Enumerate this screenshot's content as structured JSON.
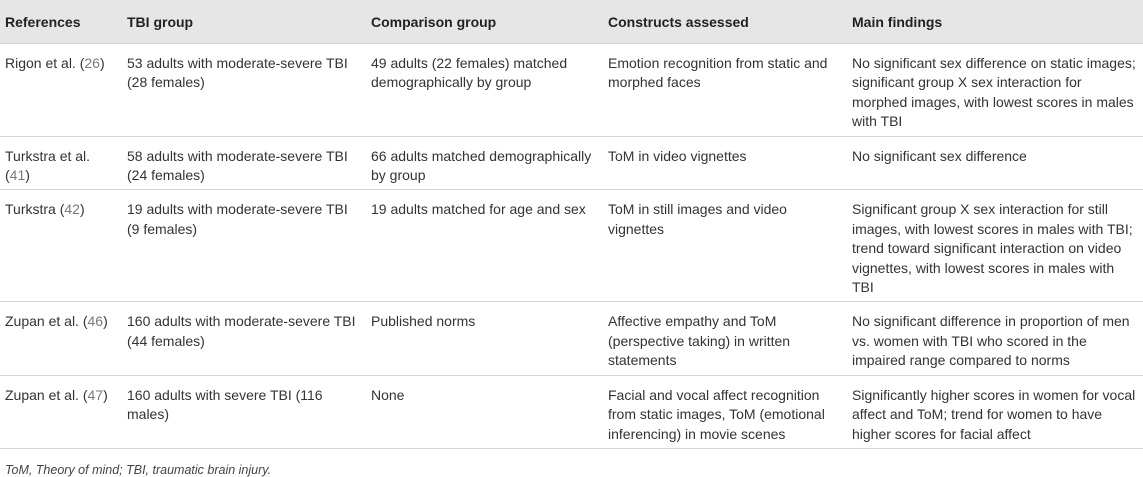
{
  "table": {
    "headers": [
      "References",
      "TBI group",
      "Comparison group",
      "Constructs assessed",
      "Main findings"
    ],
    "rows": [
      {
        "author": "Rigon et al.",
        "ref": "26",
        "tbi": "53 adults with moderate-severe TBI (28 females)",
        "comparison": "49 adults (22 females) matched demographically by group",
        "constructs": "Emotion recognition from static and morphed faces",
        "findings": "No significant sex difference on static images; significant group X sex interaction for morphed images, with lowest scores in males with TBI"
      },
      {
        "author": "Turkstra et al.",
        "ref": "41",
        "tbi": "58 adults with moderate-severe TBI (24 females)",
        "comparison": "66 adults matched demographically by group",
        "constructs": "ToM in video vignettes",
        "findings": "No significant sex difference"
      },
      {
        "author": "Turkstra",
        "ref": "42",
        "tbi": "19 adults with moderate-severe TBI (9 females)",
        "comparison": "19 adults matched for age and sex",
        "constructs": "ToM in still images and video vignettes",
        "findings": "Significant group X sex interaction for still images, with lowest scores in males with TBI; trend toward significant interaction on video vignettes, with lowest scores in males with TBI"
      },
      {
        "author": "Zupan et al.",
        "ref": "46",
        "tbi": "160 adults with moderate-severe TBI (44 females)",
        "comparison": "Published norms",
        "constructs": "Affective empathy and ToM (perspective taking) in written statements",
        "findings": "No significant difference in proportion of men vs. women with TBI who scored in the impaired range compared to norms"
      },
      {
        "author": "Zupan et al.",
        "ref": "47",
        "tbi": "160 adults with severe TBI (116 males)",
        "comparison": "None",
        "constructs": "Facial and vocal affect recognition from static images, ToM (emotional inferencing) in movie scenes",
        "findings": "Significantly higher scores in women for vocal affect and ToM; trend for women to have higher scores for facial affect"
      }
    ]
  },
  "footnote": "ToM, Theory of mind; TBI, traumatic brain injury."
}
